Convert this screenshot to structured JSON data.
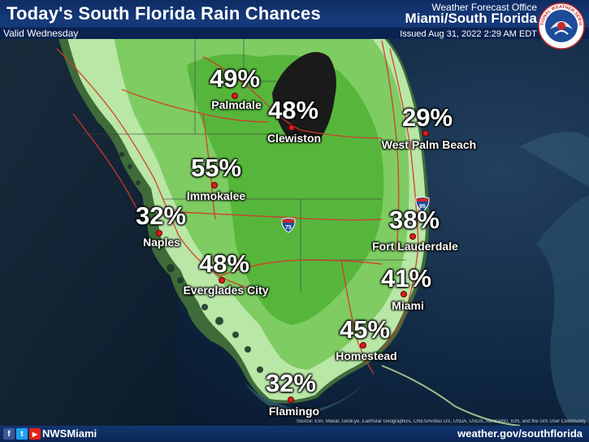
{
  "header": {
    "title": "Today's South Florida Rain Chances",
    "valid": "Valid Wednesday",
    "office_small": "Weather Forecast Office",
    "office_big": "Miami/South Florida",
    "issued": "Issued Aug 31, 2022 2:29 AM EDT"
  },
  "logo": {
    "icon": "noaa-nws-logo",
    "text": "NATIONAL WEATHER SERVICE"
  },
  "highways": {
    "i75": "75",
    "i95": "95"
  },
  "locations": [
    {
      "name": "Palmdale",
      "chance": "49%"
    },
    {
      "name": "Clewiston",
      "chance": "48%"
    },
    {
      "name": "West Palm Beach",
      "chance": "29%"
    },
    {
      "name": "Immokalee",
      "chance": "55%"
    },
    {
      "name": "Naples",
      "chance": "32%"
    },
    {
      "name": "Fort Lauderdale",
      "chance": "38%"
    },
    {
      "name": "Everglades City",
      "chance": "48%"
    },
    {
      "name": "Miami",
      "chance": "41%"
    },
    {
      "name": "Homestead",
      "chance": "45%"
    },
    {
      "name": "Flamingo",
      "chance": "32%"
    }
  ],
  "footer": {
    "social": [
      "f",
      "t",
      "▶"
    ],
    "handle": "NWSMiami",
    "website": "weather.gov/southflorida",
    "credits": "Source: Esri, Maxar, GeoEye, Earthstar Geographics, CNES/Airbus DS, USDA, USGS, AeroGRID, IGN, and the GIS User Community"
  },
  "colors": {
    "light_green": "#b9e7a6",
    "mid_green": "#7fcc63",
    "dark_green": "#56b63c",
    "lake": "#1a1a1a",
    "roads": "#d23a2a",
    "header_bg": "#163a7a"
  }
}
